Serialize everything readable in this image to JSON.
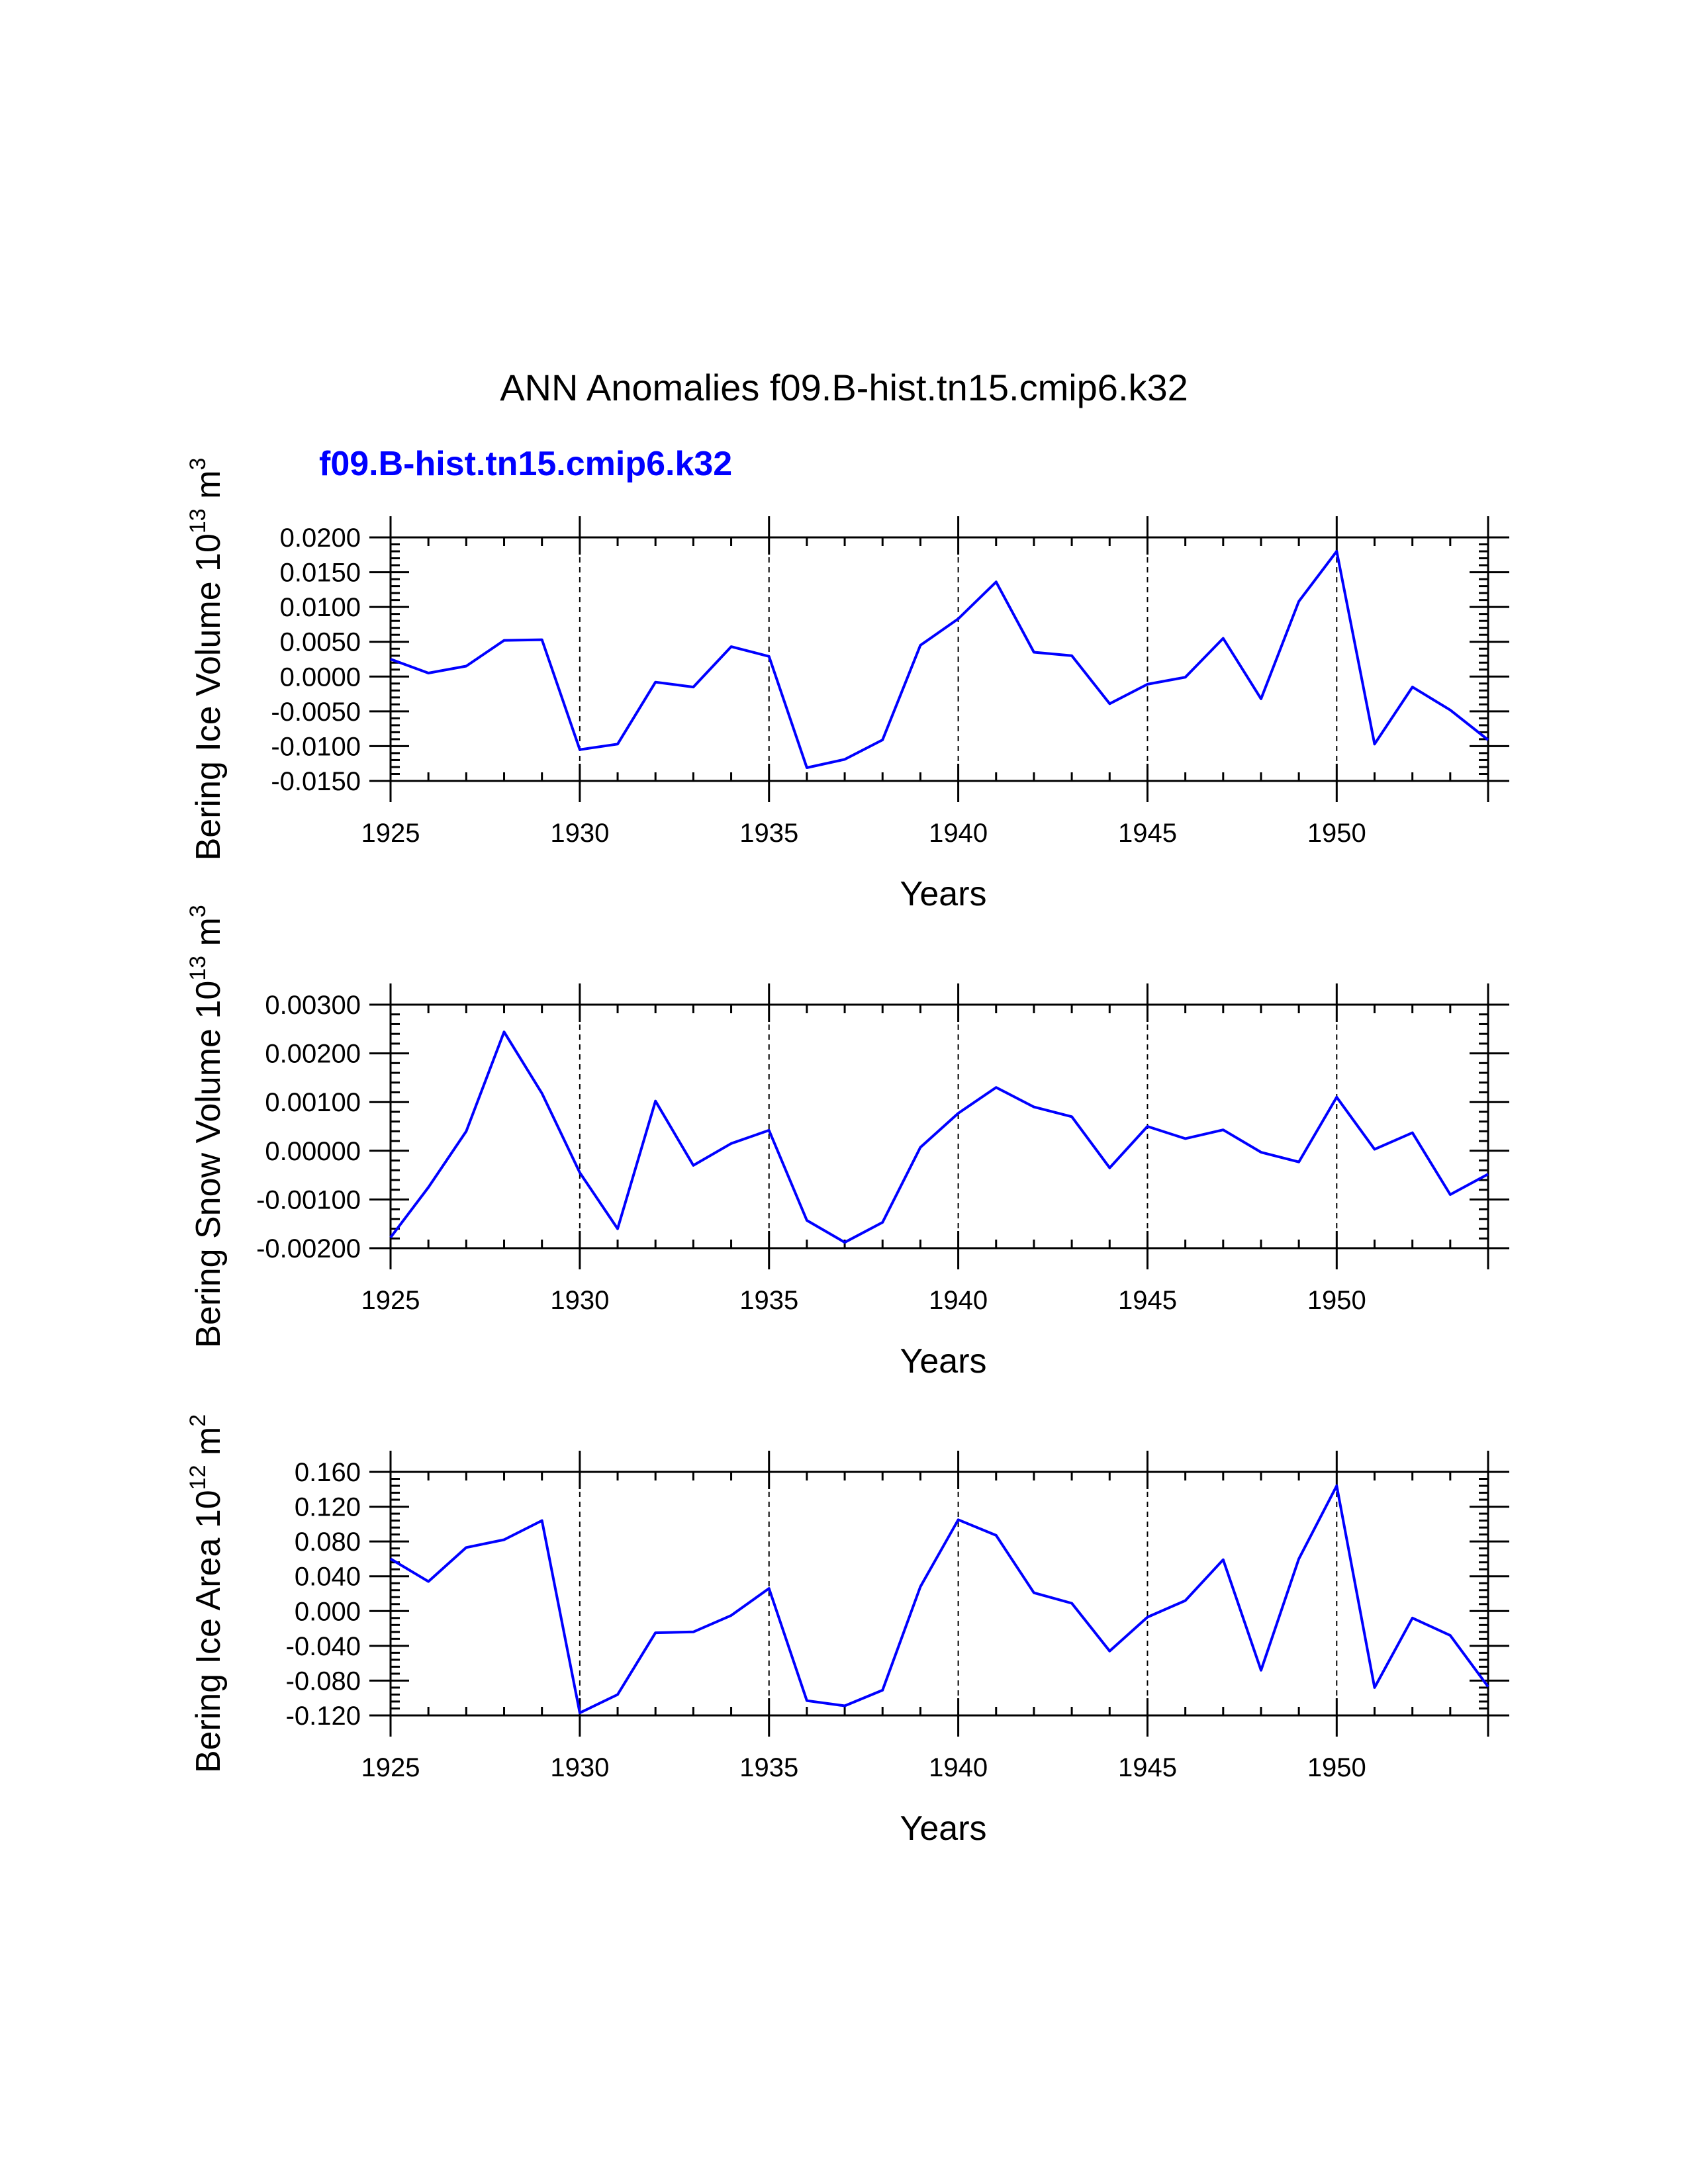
{
  "figure": {
    "title": "ANN Anomalies f09.B-hist.tn15.cmip6.k32",
    "series_label": "f09.B-hist.tn15.cmip6.k32",
    "series_color": "#0000ff"
  },
  "chart_data": [
    {
      "type": "line",
      "xlabel": "Years",
      "ylabel": {
        "text": "Bering Ice Volume 10",
        "exp": "13",
        "unit": " m",
        "unit_exp": "3"
      },
      "xlim": [
        1925,
        1954
      ],
      "ylim": [
        -0.015,
        0.02
      ],
      "grid": "dashed vertical lines at major x ticks",
      "xticks": [
        1925,
        1930,
        1935,
        1940,
        1945,
        1950
      ],
      "xtick_labels": [
        "1925",
        "1930",
        "1935",
        "1940",
        "1945",
        "1950"
      ],
      "yticks": [
        0.02,
        0.015,
        0.01,
        0.005,
        0.0,
        -0.005,
        -0.01,
        -0.015
      ],
      "ytick_labels": [
        "0.0200",
        "0.0150",
        "0.0100",
        "0.0050",
        "0.0000",
        "-0.0050",
        "-0.0100",
        "-0.0150"
      ],
      "x": [
        1925,
        1926,
        1927,
        1928,
        1929,
        1930,
        1931,
        1932,
        1933,
        1934,
        1935,
        1936,
        1937,
        1938,
        1939,
        1940,
        1941,
        1942,
        1943,
        1944,
        1945,
        1946,
        1947,
        1948,
        1949,
        1950,
        1951,
        1952,
        1953,
        1954
      ],
      "series": [
        {
          "name": "f09.B-hist.tn15.cmip6.k32",
          "values": [
            0.0025,
            0.0005,
            0.0015,
            0.0052,
            0.0053,
            -0.0105,
            -0.0097,
            -0.0008,
            -0.0015,
            0.0043,
            0.0029,
            -0.0131,
            -0.0119,
            -0.0091,
            0.0045,
            0.0083,
            0.0136,
            0.0035,
            0.003,
            -0.0039,
            -0.0011,
            -0.0001,
            0.0055,
            -0.0032,
            0.0108,
            0.018,
            -0.0097,
            -0.0015,
            -0.0048,
            -0.0091
          ]
        }
      ]
    },
    {
      "type": "line",
      "xlabel": "Years",
      "ylabel": {
        "text": "Bering Snow Volume 10",
        "exp": "13",
        "unit": " m",
        "unit_exp": "3"
      },
      "xlim": [
        1925,
        1954
      ],
      "ylim": [
        -0.002,
        0.003
      ],
      "grid": "dashed vertical lines at major x ticks",
      "xticks": [
        1925,
        1930,
        1935,
        1940,
        1945,
        1950
      ],
      "xtick_labels": [
        "1925",
        "1930",
        "1935",
        "1940",
        "1945",
        "1950"
      ],
      "yticks": [
        0.003,
        0.002,
        0.001,
        0.0,
        -0.001,
        -0.002
      ],
      "ytick_labels": [
        "0.00300",
        "0.00200",
        "0.00100",
        "0.00000",
        "-0.00100",
        "-0.00200"
      ],
      "x": [
        1925,
        1926,
        1927,
        1928,
        1929,
        1930,
        1931,
        1932,
        1933,
        1934,
        1935,
        1936,
        1937,
        1938,
        1939,
        1940,
        1941,
        1942,
        1943,
        1944,
        1945,
        1946,
        1947,
        1948,
        1949,
        1950,
        1951,
        1952,
        1953,
        1954
      ],
      "series": [
        {
          "name": "f09.B-hist.tn15.cmip6.k32",
          "values": [
            -0.00178,
            -0.00075,
            0.0004,
            0.00244,
            0.00118,
            -0.00045,
            -0.0016,
            0.00102,
            -0.0003,
            0.00015,
            0.00042,
            -0.00143,
            -0.00188,
            -0.00147,
            7e-05,
            0.00077,
            0.0013,
            0.0009,
            0.0007,
            -0.00035,
            0.0005,
            0.00025,
            0.00043,
            -3e-05,
            -0.00023,
            0.0011,
            3e-05,
            0.00037,
            -0.0009,
            -0.00048
          ]
        }
      ]
    },
    {
      "type": "line",
      "xlabel": "Years",
      "ylabel": {
        "text": "Bering Ice Area 10",
        "exp": "12",
        "unit": " m",
        "unit_exp": "2"
      },
      "xlim": [
        1925,
        1954
      ],
      "ylim": [
        -0.12,
        0.16
      ],
      "grid": "dashed vertical lines at major x ticks",
      "xticks": [
        1925,
        1930,
        1935,
        1940,
        1945,
        1950
      ],
      "xtick_labels": [
        "1925",
        "1930",
        "1935",
        "1940",
        "1945",
        "1950"
      ],
      "yticks": [
        0.16,
        0.12,
        0.08,
        0.04,
        0.0,
        -0.04,
        -0.08,
        -0.12
      ],
      "ytick_labels": [
        "0.160",
        "0.120",
        "0.080",
        "0.040",
        "0.000",
        "-0.040",
        "-0.080",
        "-0.120"
      ],
      "x": [
        1925,
        1926,
        1927,
        1928,
        1929,
        1930,
        1931,
        1932,
        1933,
        1934,
        1935,
        1936,
        1937,
        1938,
        1939,
        1940,
        1941,
        1942,
        1943,
        1944,
        1945,
        1946,
        1947,
        1948,
        1949,
        1950,
        1951,
        1952,
        1953,
        1954
      ],
      "series": [
        {
          "name": "f09.B-hist.tn15.cmip6.k32",
          "values": [
            0.06,
            0.034,
            0.073,
            0.082,
            0.104,
            -0.117,
            -0.096,
            -0.025,
            -0.024,
            -0.005,
            0.026,
            -0.103,
            -0.109,
            -0.091,
            0.028,
            0.105,
            0.087,
            0.021,
            0.009,
            -0.046,
            -0.007,
            0.012,
            0.059,
            -0.068,
            0.06,
            0.144,
            -0.088,
            -0.008,
            -0.028,
            -0.087
          ]
        }
      ]
    }
  ]
}
